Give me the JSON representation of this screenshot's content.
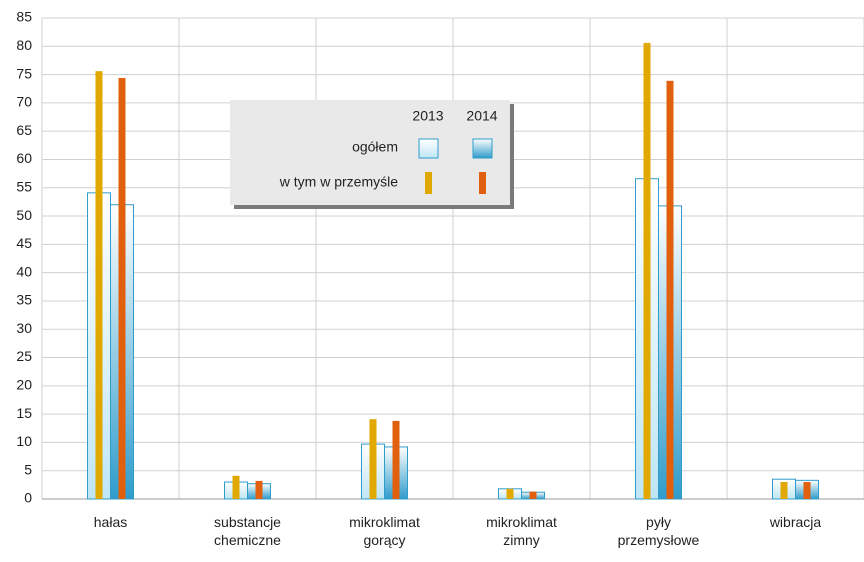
{
  "chart_data": {
    "type": "bar",
    "categories": [
      "hałas",
      "substancje chemiczne",
      "mikroklimat gorący",
      "mikroklimat zimny",
      "pyły przemysłowe",
      "wibracja"
    ],
    "legend_years": [
      "2013",
      "2014"
    ],
    "series": [
      {
        "name": "ogółem",
        "style": "wide",
        "colors": [
          "#e4f4fb",
          "#2f9ccb"
        ],
        "values": [
          [
            54.1,
            3.0,
            9.7,
            1.8,
            56.6,
            3.5
          ],
          [
            52.0,
            2.7,
            9.2,
            1.2,
            51.8,
            3.3
          ]
        ]
      },
      {
        "name": "w tym w przemyśle",
        "style": "narrow",
        "colors": [
          "#e0a800",
          "#e0600e"
        ],
        "values": [
          [
            75.6,
            4.1,
            14.1,
            1.8,
            80.6,
            3.0
          ],
          [
            74.4,
            3.2,
            13.8,
            1.3,
            73.9,
            3.0
          ]
        ]
      }
    ],
    "ylim": [
      0,
      85
    ],
    "yticks": [
      0,
      5,
      10,
      15,
      20,
      25,
      30,
      35,
      40,
      45,
      50,
      55,
      60,
      65,
      70,
      75,
      80,
      85
    ],
    "grid": true
  }
}
